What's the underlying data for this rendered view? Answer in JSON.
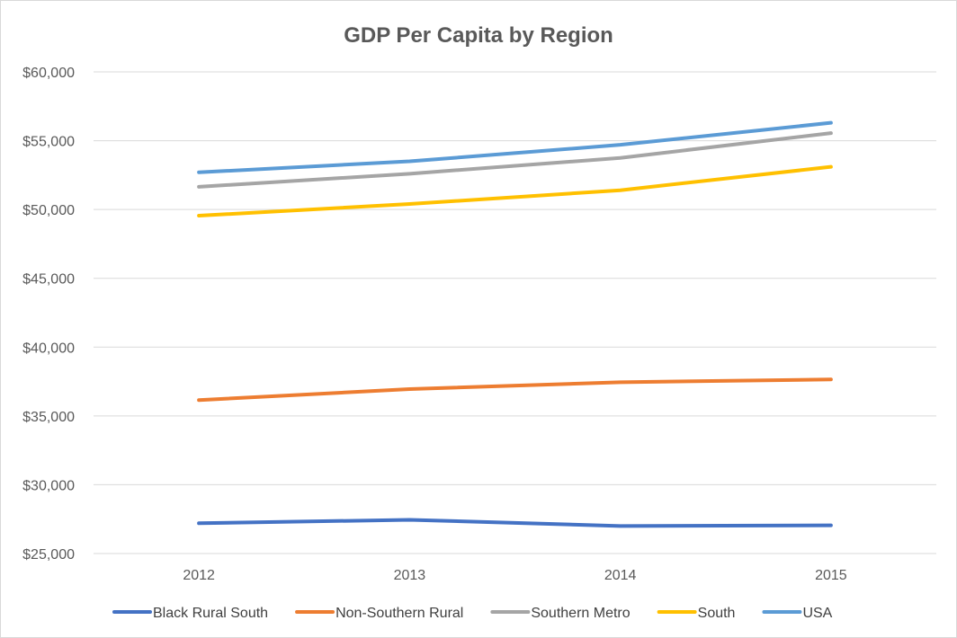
{
  "chart_data": {
    "type": "line",
    "title": "GDP Per Capita by Region",
    "xlabel": "",
    "ylabel": "",
    "categories": [
      "2012",
      "2013",
      "2014",
      "2015"
    ],
    "ylim": [
      25000,
      60000
    ],
    "y_ticks": [
      25000,
      30000,
      35000,
      40000,
      45000,
      50000,
      55000,
      60000
    ],
    "y_tick_labels": [
      "$25,000",
      "$30,000",
      "$35,000",
      "$40,000",
      "$45,000",
      "$50,000",
      "$55,000",
      "$60,000"
    ],
    "grid": true,
    "legend_position": "bottom",
    "series": [
      {
        "name": "Black Rural South",
        "color": "#4472C4",
        "values": [
          27200,
          27450,
          27000,
          27050
        ]
      },
      {
        "name": "Non-Southern Rural",
        "color": "#ED7D31",
        "values": [
          36150,
          36950,
          37450,
          37650
        ]
      },
      {
        "name": "Southern Metro",
        "color": "#A5A5A5",
        "values": [
          51650,
          52600,
          53750,
          55550
        ]
      },
      {
        "name": "South",
        "color": "#FFC000",
        "values": [
          49550,
          50400,
          51400,
          53100
        ]
      },
      {
        "name": "USA",
        "color": "#5B9BD5",
        "values": [
          52700,
          53500,
          54700,
          56300
        ]
      }
    ]
  }
}
